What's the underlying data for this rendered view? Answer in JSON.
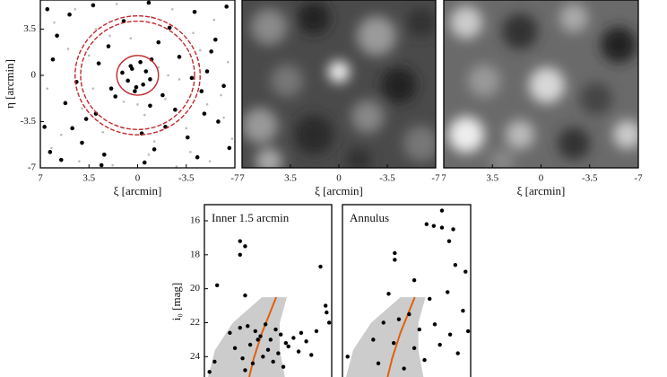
{
  "chart_data": [
    {
      "type": "scatter",
      "xlabel": "ξ [arcmin]",
      "ylabel": "η [arcmin]",
      "xlim": [
        7,
        -7
      ],
      "xticks": [
        7,
        3.5,
        0,
        -3.5,
        -7
      ],
      "ylim": [
        -7,
        5.7
      ],
      "yticks": [
        3.5,
        0,
        -3.5,
        -7
      ],
      "series": [
        {
          "color": "#bbbbbb",
          "x": [
            6.0,
            4.5,
            3.0,
            1.5,
            -1.0,
            -2.5,
            -4.0,
            -5.5,
            -6.5,
            5.0,
            3.5,
            2.0,
            0.5,
            -1.5,
            -3.0,
            -4.5,
            -6.0,
            6.5,
            4.0,
            1.0,
            -0.5,
            -2.0,
            -3.5,
            -5.0,
            5.5,
            2.5,
            -1.2,
            -3.8,
            -6.2,
            4.2,
            1.8,
            -0.8,
            -2.8,
            -5.2,
            6.2,
            3.2,
            0.0,
            -2.2,
            -4.4,
            -6.8
          ],
          "y": [
            4.0,
            5.0,
            3.5,
            5.4,
            4.4,
            5.0,
            3.2,
            4.2,
            1.0,
            2.0,
            1.5,
            3.0,
            2.8,
            0.6,
            -0.3,
            1.9,
            -1.5,
            -1.0,
            -2.5,
            -2.0,
            -3.0,
            -1.8,
            -4.0,
            -2.2,
            -4.5,
            -4.3,
            -5.0,
            -5.8,
            -3.2,
            -6.5,
            -6.8,
            -6.0,
            -6.9,
            -6.5,
            -5.5,
            -1.0,
            -2.2,
            0.0,
            0.8,
            -4.8
          ]
        },
        {
          "color": "#000000",
          "x": [
            6.5,
            5.8,
            4.9,
            3.2,
            2.1,
            1.0,
            -0.8,
            -2.3,
            -4.1,
            -5.6,
            -6.4,
            6.1,
            4.4,
            2.8,
            -1.5,
            -3.0,
            -5.0,
            -6.2,
            5.2,
            3.7,
            1.6,
            -0.3,
            -2.7,
            -4.6,
            6.7,
            4.0,
            2.4,
            -1.2,
            -3.6,
            -5.8,
            5.5,
            3.0,
            -0.5,
            -2.0,
            -4.3,
            -6.6,
            4.7,
            1.9,
            -1.8,
            -3.9,
            -5.3,
            6.3,
            2.6,
            -0.9,
            -4.8,
            0.4,
            -0.2,
            0.7,
            -0.6,
            0.1,
            -0.9,
            0.5,
            -0.4,
            1.1,
            -1.0,
            0.2
          ],
          "y": [
            5.0,
            3.0,
            4.6,
            5.3,
            2.2,
            4.1,
            5.5,
            3.6,
            4.8,
            2.7,
            5.2,
            1.2,
            -0.5,
            0.9,
            2.5,
            1.4,
            0.3,
            -0.8,
            -2.1,
            -3.3,
            -1.6,
            -4.4,
            -2.6,
            -1.2,
            -3.9,
            -5.1,
            -6.0,
            -5.6,
            -4.7,
            -3.5,
            -6.4,
            -2.9,
            -6.6,
            -3.9,
            -6.2,
            -5.5,
            -4.0,
            -1.0,
            -1.5,
            -0.2,
            1.8,
            -5.8,
            -6.8,
            -2.3,
            -2.9,
            0.5,
            1.0,
            -0.4,
            0.3,
            -0.9,
            -0.3,
            0.7,
            -0.7,
            0.2,
            1.2,
            -1.2
          ]
        }
      ],
      "circle_color": "#c0282d",
      "circles": [
        {
          "r": 1.5,
          "dashed": false
        },
        {
          "r": 4.1,
          "dashed": true
        },
        {
          "r": 4.5,
          "dashed": true
        }
      ]
    },
    {
      "type": "image",
      "xlabel": "ξ [arcmin]",
      "xlim": [
        7,
        -7
      ],
      "xticks": [
        7,
        3.5,
        0,
        -3.5,
        -7
      ]
    },
    {
      "type": "image",
      "xlabel": "ξ [arcmin]",
      "xlim": [
        7,
        -7
      ],
      "xticks": [
        7,
        3.5,
        0,
        -3.5,
        -7
      ]
    },
    {
      "type": "cmd",
      "title": "Inner 1.5 arcmin",
      "ylabel": "i₀ [mag]",
      "xlim": [
        -0.5,
        2.0
      ],
      "ylim": [
        25.2,
        15.05
      ],
      "yticks": [
        16,
        18,
        20,
        22,
        24
      ],
      "region_color": "#cccccc",
      "line_color": "#e06010",
      "region": {
        "x": [
          0.63,
          1.12,
          0.98,
          0.98,
          1.08,
          -0.43,
          -0.29,
          0.06
        ],
        "y": [
          20.5,
          20.5,
          22.0,
          23.6,
          25.2,
          25.2,
          23.6,
          22.0
        ]
      },
      "isochrone": {
        "x": [
          0.91,
          0.63,
          0.47,
          0.38
        ],
        "y": [
          20.5,
          22.6,
          24.1,
          25.2
        ]
      },
      "points": {
        "x": [
          0.2,
          0.3,
          0.2,
          -0.25,
          0.3,
          1.78,
          1.88,
          1.9,
          1.95,
          0.0,
          0.2,
          0.35,
          0.5,
          0.6,
          0.7,
          0.8,
          0.9,
          1.0,
          1.1,
          1.25,
          1.4,
          1.5,
          0.1,
          0.4,
          0.55,
          0.75,
          0.95,
          1.15,
          1.35,
          0.25,
          0.45,
          0.65,
          0.85,
          1.05,
          0.3,
          -0.3,
          -0.4,
          1.6,
          1.7
        ],
        "y": [
          17.2,
          17.5,
          18.0,
          19.8,
          20.4,
          18.7,
          21.0,
          21.4,
          22.0,
          22.6,
          22.3,
          22.2,
          22.5,
          22.8,
          22.1,
          23.0,
          22.4,
          22.7,
          23.2,
          22.9,
          22.6,
          23.1,
          23.5,
          23.3,
          23.0,
          23.6,
          23.8,
          23.4,
          23.7,
          24.1,
          24.4,
          24.0,
          24.3,
          24.6,
          24.8,
          24.3,
          24.9,
          23.9,
          22.5
        ]
      }
    },
    {
      "type": "cmd",
      "title": "Annulus",
      "xlim": [
        -0.5,
        2.0
      ],
      "ylim": [
        25.2,
        15.05
      ],
      "region_color": "#cccccc",
      "line_color": "#e06010",
      "region": {
        "x": [
          0.63,
          1.12,
          0.98,
          0.98,
          1.08,
          -0.43,
          -0.29,
          0.06
        ],
        "y": [
          20.5,
          20.5,
          22.0,
          23.6,
          25.2,
          25.2,
          23.6,
          22.0
        ]
      },
      "isochrone": {
        "x": [
          0.91,
          0.63,
          0.47,
          0.38
        ],
        "y": [
          20.5,
          22.6,
          24.1,
          25.2
        ]
      },
      "points": {
        "x": [
          1.44,
          1.14,
          1.28,
          1.44,
          1.66,
          0.52,
          0.52,
          1.58,
          1.7,
          0.9,
          1.9,
          0.4,
          1.2,
          1.55,
          1.85,
          0.3,
          0.6,
          0.8,
          1.0,
          1.3,
          1.6,
          1.95,
          0.1,
          0.5,
          0.9,
          1.4,
          1.75,
          -0.4,
          0.2,
          0.7,
          1.1
        ],
        "y": [
          15.4,
          16.2,
          16.3,
          16.4,
          16.5,
          17.9,
          18.3,
          17.2,
          18.6,
          19.5,
          19.0,
          20.3,
          20.6,
          20.2,
          21.3,
          22.0,
          21.8,
          21.5,
          22.4,
          22.1,
          22.7,
          22.5,
          23.0,
          23.2,
          23.5,
          23.3,
          23.8,
          24.0,
          24.4,
          24.7,
          24.2
        ]
      }
    }
  ]
}
